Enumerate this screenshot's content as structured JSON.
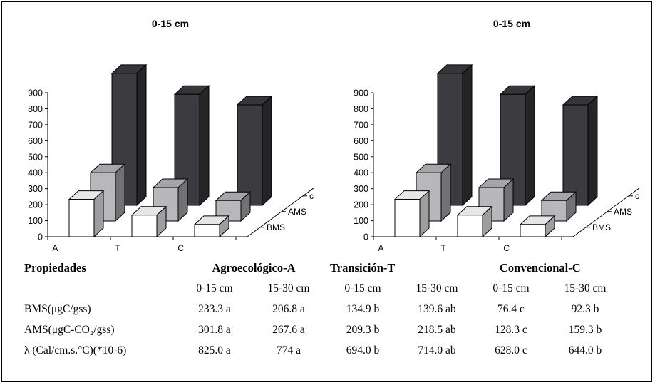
{
  "chart_data": [
    {
      "type": "bar3d",
      "title": "0-15 cm",
      "categories": [
        "A",
        "T",
        "C"
      ],
      "depth_labels": [
        "BMS",
        "AMS",
        "c"
      ],
      "y_ticks": [
        "0",
        "100",
        "200",
        "300",
        "400",
        "500",
        "600",
        "700",
        "800",
        "900"
      ],
      "ylim": [
        0,
        900
      ],
      "series": [
        {
          "name": "BMS",
          "values": [
            233.3,
            134.9,
            76.4
          ],
          "color": "#ffffff"
        },
        {
          "name": "AMS",
          "values": [
            301.8,
            209.3,
            128.3
          ],
          "color": "#b8b8bc"
        },
        {
          "name": "c",
          "values": [
            825.0,
            694.0,
            628.0
          ],
          "color": "#3c3c40"
        }
      ]
    },
    {
      "type": "bar3d",
      "title": "0-15 cm",
      "categories": [
        "A",
        "T",
        "C"
      ],
      "depth_labels": [
        "BMS",
        "AMS",
        "c"
      ],
      "y_ticks": [
        "0",
        "100",
        "200",
        "300",
        "400",
        "500",
        "600",
        "700",
        "800",
        "900"
      ],
      "ylim": [
        0,
        900
      ],
      "series": [
        {
          "name": "BMS",
          "values": [
            233.3,
            134.9,
            76.4
          ],
          "color": "#ffffff"
        },
        {
          "name": "AMS",
          "values": [
            301.8,
            209.3,
            128.3
          ],
          "color": "#b8b8bc"
        },
        {
          "name": "c",
          "values": [
            825.0,
            694.0,
            628.0
          ],
          "color": "#3c3c40"
        }
      ]
    }
  ],
  "table": {
    "header": [
      "Propiedades",
      "Agroecológico-A",
      "Transición-T",
      "Convencional-C"
    ],
    "depths": [
      "0-15 cm",
      "15-30 cm",
      "0-15 cm",
      "15-30 cm",
      "0-15 cm",
      "15-30 cm"
    ],
    "rows": [
      {
        "label": "BMS(μgC/gss)",
        "values": [
          "233.3 a",
          "206.8 a",
          "134.9 b",
          "139.6 ab",
          "76.4 c",
          "92.3 b"
        ]
      },
      {
        "label": "AMS(μgC-CO₂/gss)",
        "values": [
          "301.8 a",
          "267.6 a",
          "209.3 b",
          "218.5 ab",
          "128.3 c",
          "159.3 b"
        ]
      },
      {
        "label": "λ (Cal/cm.s.°C)(*10-6)",
        "values": [
          "825.0 a",
          "774 a",
          "694.0 b",
          "714.0 ab",
          "628.0 c",
          "644.0 b"
        ]
      }
    ]
  }
}
